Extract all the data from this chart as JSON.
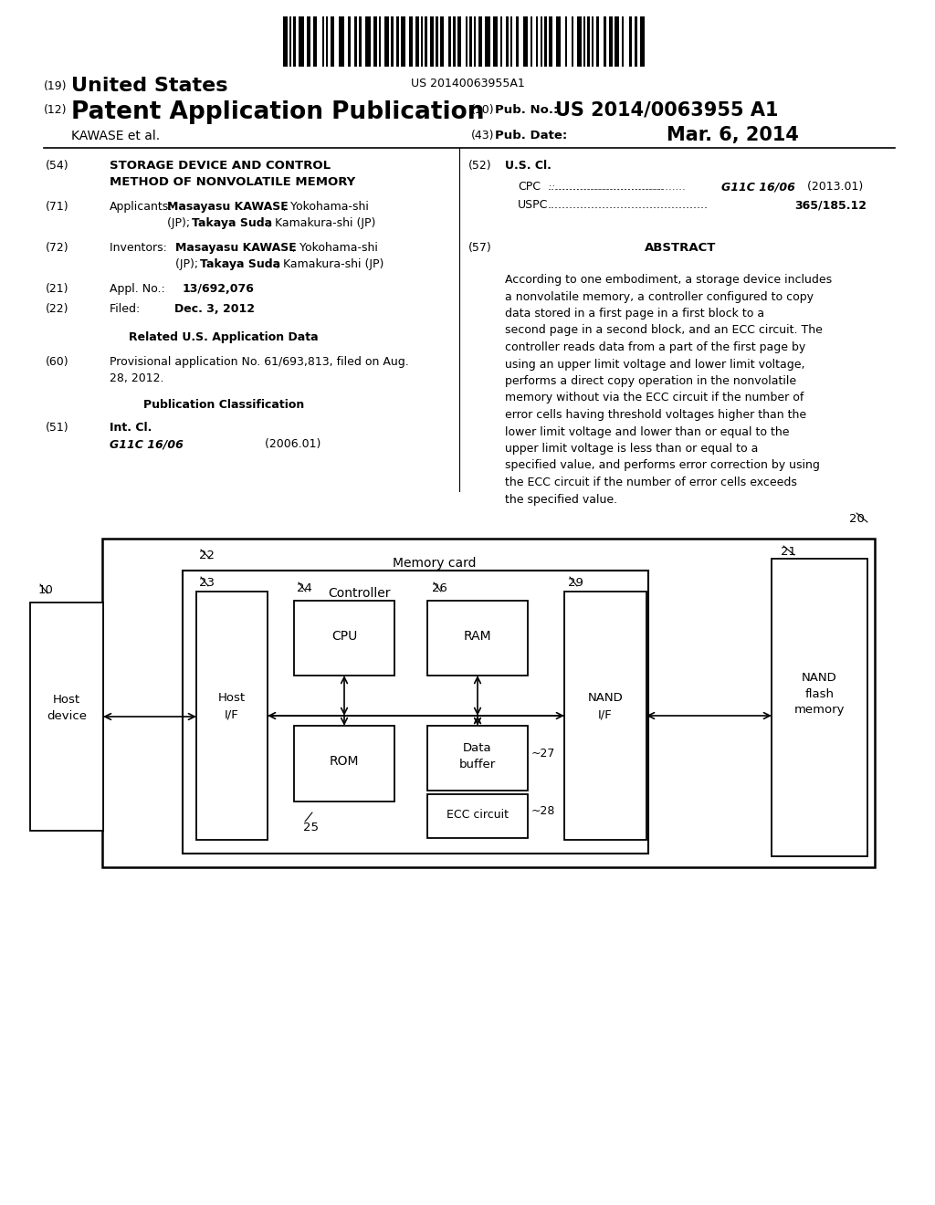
{
  "background_color": "#ffffff",
  "barcode_text": "US 20140063955A1",
  "header": {
    "country_num": "(19)",
    "country": "United States",
    "type_num": "(12)",
    "type": "Patent Application Publication",
    "pub_num_label_num": "(10)",
    "pub_num_label": "Pub. No.:",
    "pub_num": "US 2014/0063955 A1",
    "inventor": "KAWASE et al.",
    "date_num": "(43)",
    "date_label": "Pub. Date:",
    "date": "Mar. 6, 2014"
  },
  "abstract_text": "According to one embodiment, a storage device includes a nonvolatile memory, a controller configured to copy data stored in a first page in a first block to a second page in a second block, and an ECC circuit. The controller reads data from a part of the first page by using an upper limit voltage and lower limit voltage, performs a direct copy operation in the nonvolatile memory without via the ECC circuit if the number of error cells having threshold voltages higher than the lower limit voltage and lower than or equal to the upper limit voltage is less than or equal to a specified value, and performs error correction by using the ECC circuit if the number of error cells exceeds the specified value."
}
